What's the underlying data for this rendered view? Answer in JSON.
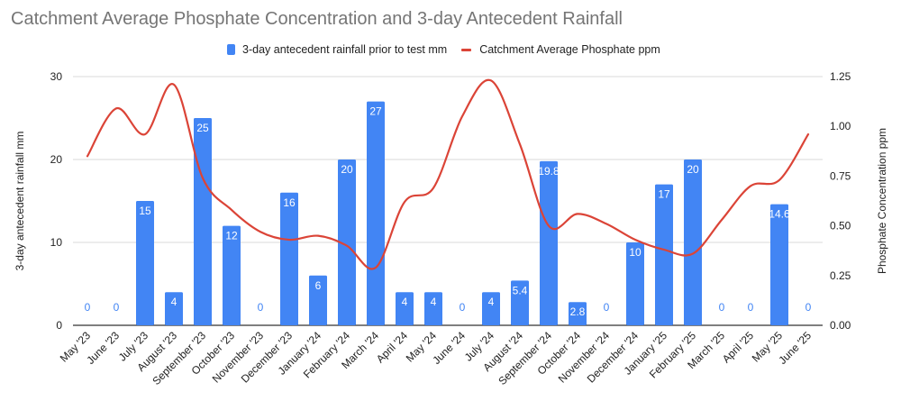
{
  "chart_data": {
    "type": "bar",
    "title": "Catchment Average Phosphate Concentration and 3-day Antecedent Rainfall",
    "categories": [
      "May '23",
      "June '23",
      "July '23",
      "August '23",
      "September '23",
      "October '23",
      "November '23",
      "December '23",
      "January '24",
      "February '24",
      "March '24",
      "April '24",
      "May '24",
      "June '24",
      "July '24",
      "August '24",
      "September '24",
      "October '24",
      "November '24",
      "December '24",
      "January '25",
      "February '25",
      "March '25",
      "April '25",
      "May '25",
      "June '25"
    ],
    "series": [
      {
        "name": "3-day antecedent rainfall prior to test mm",
        "type": "bar",
        "axis": "left",
        "color": "#4285F4",
        "values": [
          0,
          0,
          15,
          4,
          25,
          12,
          0,
          16,
          6,
          20,
          27,
          4,
          4,
          0,
          4,
          5.4,
          19.8,
          2.8,
          0,
          10,
          17,
          20,
          0,
          0,
          14.6,
          0
        ],
        "labels": [
          "0",
          "0",
          "15",
          "4",
          "25",
          "12",
          "0",
          "16",
          "6",
          "20",
          "27",
          "4",
          "4",
          "0",
          "4",
          "5.4",
          "19.8",
          "2.8",
          "0",
          "10",
          "17",
          "20",
          "0",
          "0",
          "14.6",
          "0"
        ]
      },
      {
        "name": "Catchment Average Phosphate ppm",
        "type": "line",
        "smooth": true,
        "axis": "right",
        "color": "#DB4437",
        "values": [
          0.85,
          1.09,
          0.96,
          1.21,
          0.74,
          0.58,
          0.47,
          0.43,
          0.45,
          0.4,
          0.29,
          0.62,
          0.69,
          1.05,
          1.23,
          0.91,
          0.5,
          0.56,
          0.51,
          0.43,
          0.38,
          0.36,
          0.53,
          0.7,
          0.73,
          0.96
        ]
      }
    ],
    "ylabel": "3-day antecedent rainfall mm",
    "ylim": [
      0,
      30
    ],
    "yticks": [
      "0",
      "10",
      "20",
      "30"
    ],
    "y2label": "Phosphate Concentration ppm",
    "y2lim": [
      0,
      1.25
    ],
    "y2ticks": [
      "0.00",
      "0.25",
      "0.50",
      "0.75",
      "1.00",
      "1.25"
    ],
    "xlabel": "",
    "grid": true,
    "legend": "top-center"
  }
}
